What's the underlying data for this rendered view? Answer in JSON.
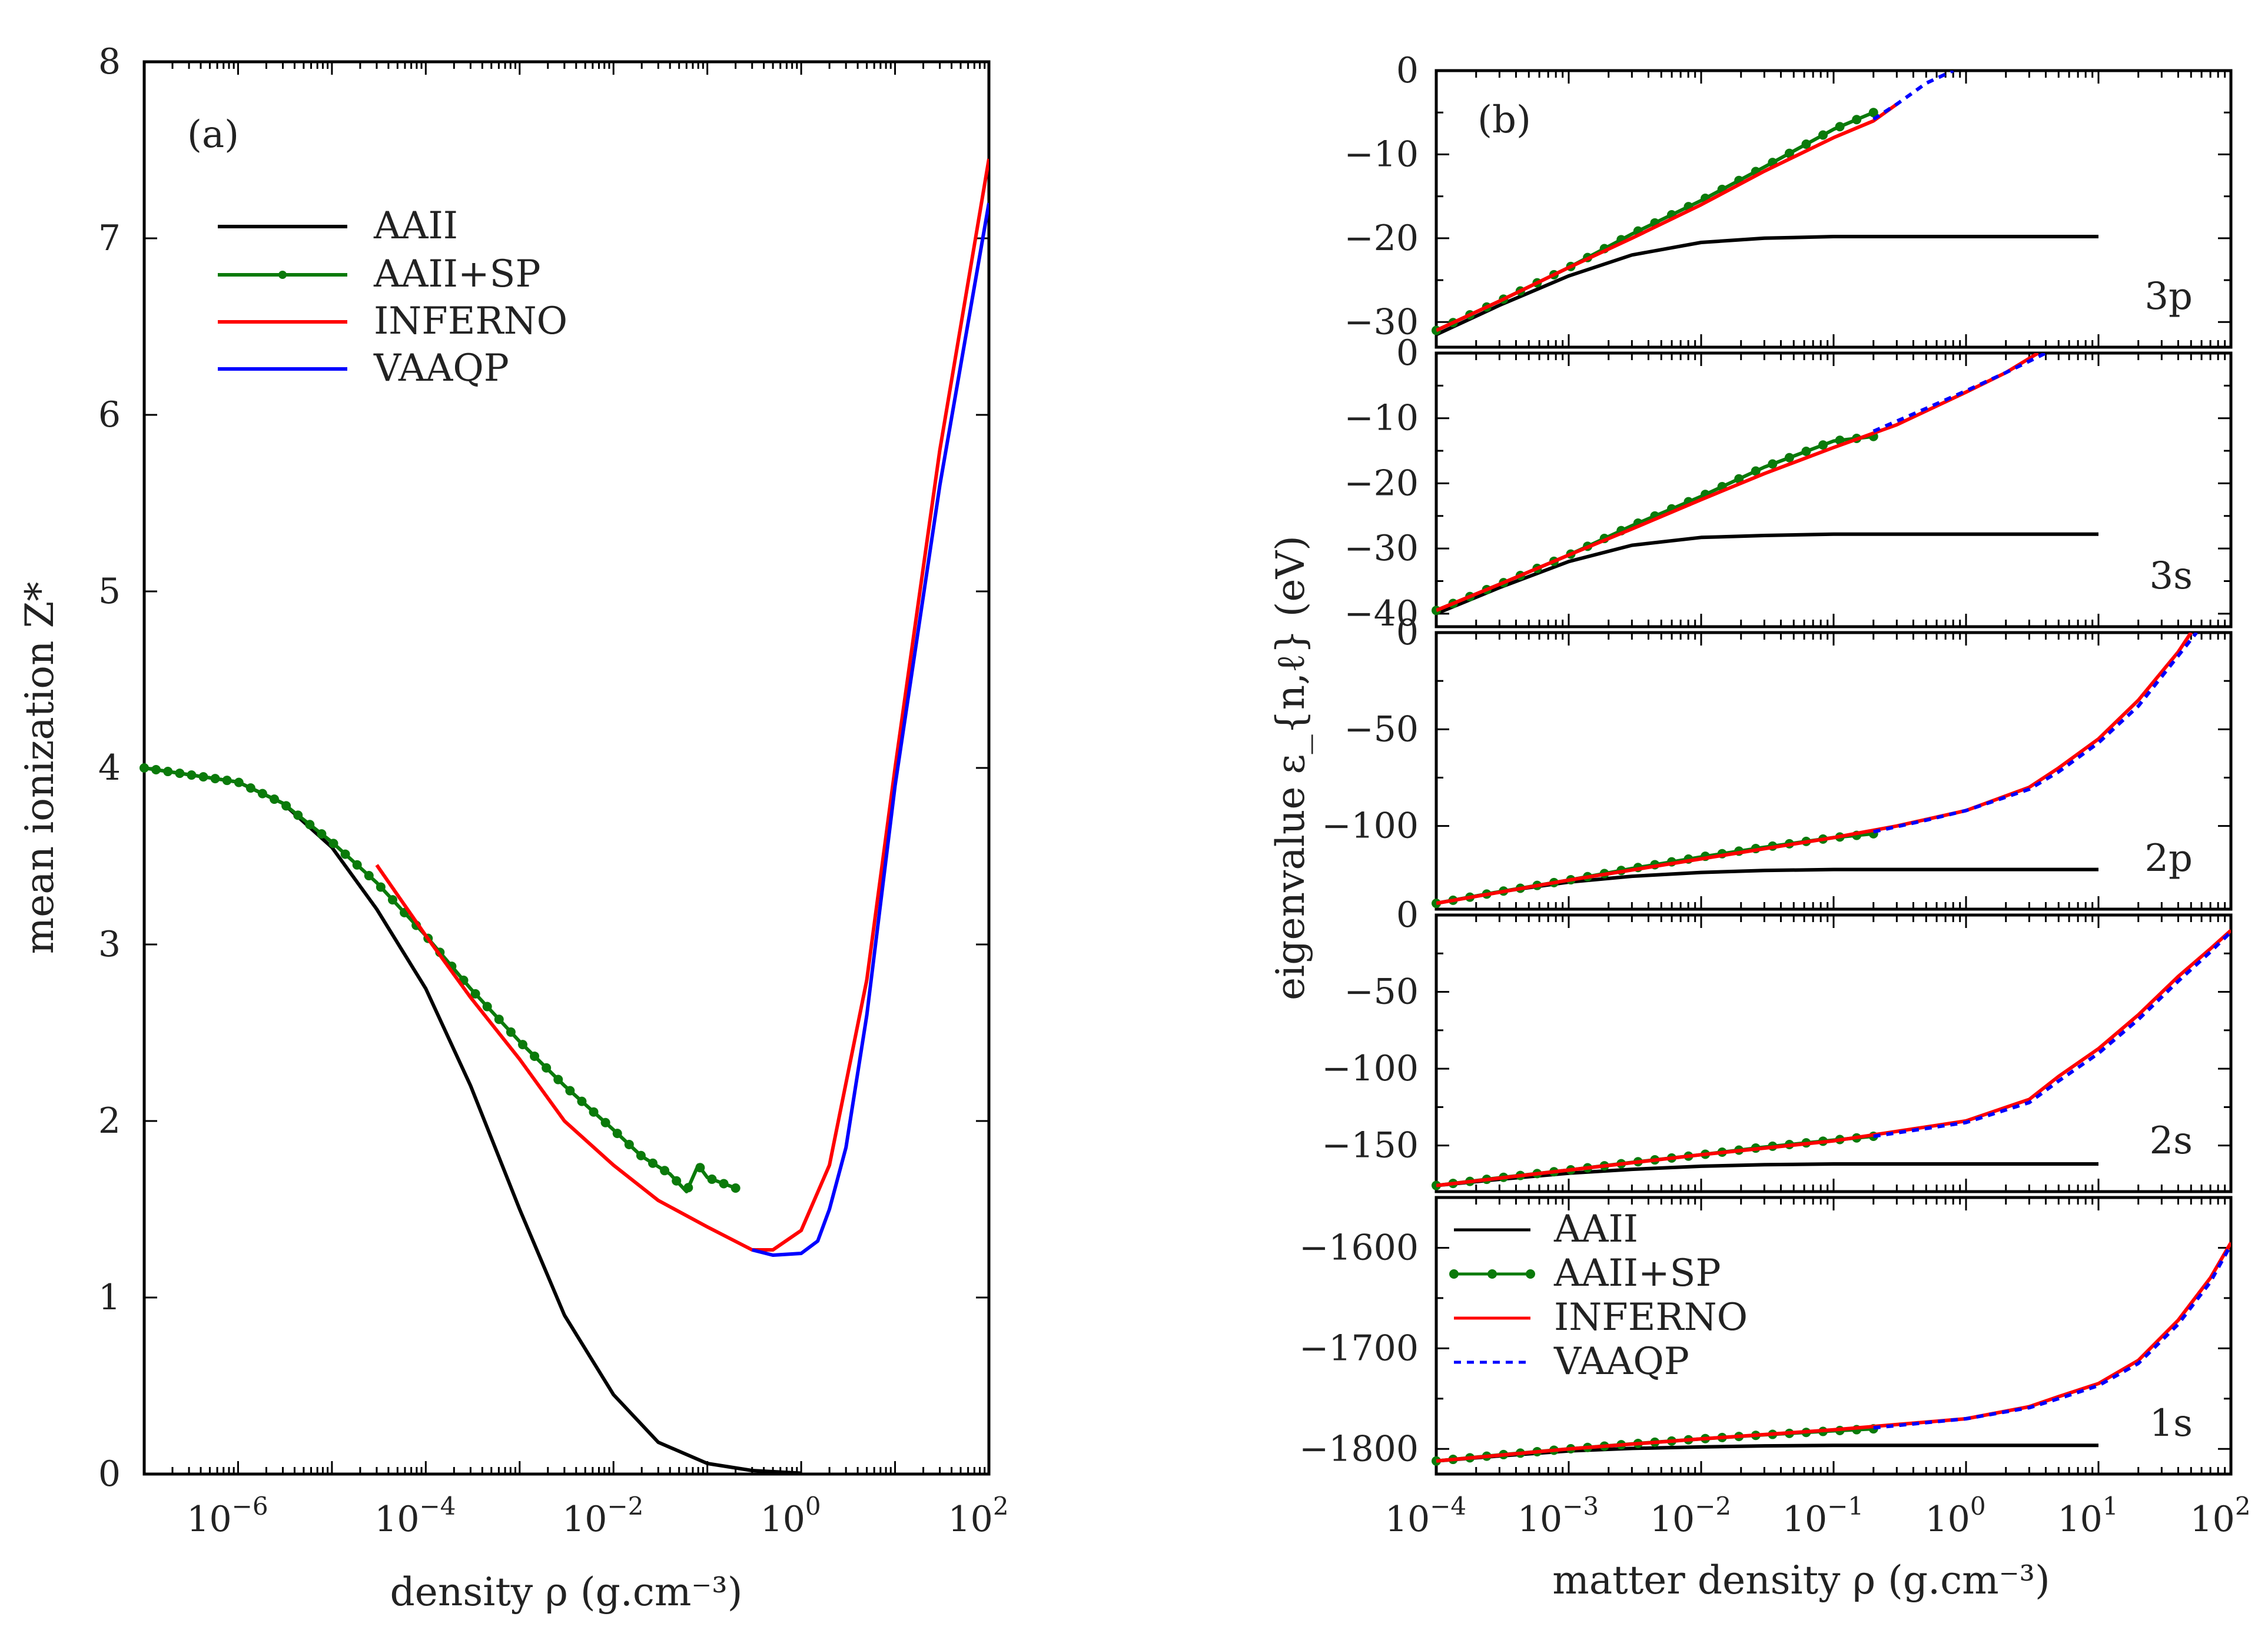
{
  "colors": {
    "AAII": "#000000",
    "AAII+SP": "#0a7a0a",
    "INFERNO": "#ff0000",
    "VAAQP": "#0000ff"
  },
  "chart_data": [
    {
      "panel": "(a)",
      "type": "line",
      "xscale": "log",
      "xlabel": "density ρ (g.cm⁻³)",
      "ylabel": "mean ionization Z*",
      "xlim": [
        1e-07,
        100
      ],
      "ylim": [
        0,
        8
      ],
      "xticks": [
        {
          "v": 1e-06,
          "base": "10",
          "exp": "−6"
        },
        {
          "v": 0.0001,
          "base": "10",
          "exp": "−4"
        },
        {
          "v": 0.01,
          "base": "10",
          "exp": "−2"
        },
        {
          "v": 1,
          "base": "10",
          "exp": "0"
        },
        {
          "v": 100,
          "base": "10",
          "exp": "2"
        }
      ],
      "yticks": [
        0,
        1,
        2,
        3,
        4,
        5,
        6,
        7,
        8
      ],
      "legend": [
        "AAII",
        "AAII+SP",
        "INFERNO",
        "VAAQP"
      ],
      "series": [
        {
          "name": "AAII",
          "x": [
            1e-07,
            1e-06,
            3e-06,
            1e-05,
            3e-05,
            0.0001,
            0.0003,
            0.001,
            0.003,
            0.01,
            0.03,
            0.1,
            0.3,
            1
          ],
          "y": [
            4.0,
            3.92,
            3.8,
            3.55,
            3.2,
            2.75,
            2.2,
            1.5,
            0.9,
            0.45,
            0.18,
            0.06,
            0.02,
            0.005
          ]
        },
        {
          "name": "AAII+SP",
          "markers": true,
          "x": [
            1e-07,
            1e-06,
            3e-06,
            1e-05,
            3e-05,
            0.0001,
            0.0003,
            0.001,
            0.003,
            0.01,
            0.02,
            0.04,
            0.06,
            0.08,
            0.1,
            0.2
          ],
          "y": [
            4.0,
            3.92,
            3.8,
            3.58,
            3.35,
            3.05,
            2.75,
            2.45,
            2.2,
            1.95,
            1.8,
            1.7,
            1.6,
            1.75,
            1.68,
            1.62
          ]
        },
        {
          "name": "INFERNO",
          "x": [
            3e-05,
            0.0001,
            0.0003,
            0.001,
            0.003,
            0.01,
            0.03,
            0.1,
            0.3,
            0.5,
            1,
            2,
            5,
            10,
            30,
            100
          ],
          "y": [
            3.45,
            3.05,
            2.7,
            2.35,
            2.0,
            1.75,
            1.55,
            1.4,
            1.27,
            1.27,
            1.38,
            1.75,
            2.8,
            4.0,
            5.8,
            7.45
          ]
        },
        {
          "name": "VAAQP",
          "x": [
            0.3,
            0.5,
            1,
            1.5,
            2,
            3,
            5,
            10,
            30,
            100
          ],
          "y": [
            1.27,
            1.24,
            1.25,
            1.32,
            1.5,
            1.85,
            2.6,
            3.9,
            5.6,
            7.2
          ]
        }
      ]
    },
    {
      "panel": "(b)",
      "type": "line",
      "xscale": "log",
      "xlabel": "matter density ρ (g.cm⁻³)",
      "ylabel": "eigenvalue ε_{n,ℓ} (eV)",
      "xlim": [
        0.0001,
        100
      ],
      "xticks": [
        {
          "v": 0.0001,
          "base": "10",
          "exp": "−4"
        },
        {
          "v": 0.001,
          "base": "10",
          "exp": "−3"
        },
        {
          "v": 0.01,
          "base": "10",
          "exp": "−2"
        },
        {
          "v": 0.1,
          "base": "10",
          "exp": "−1"
        },
        {
          "v": 1,
          "base": "10",
          "exp": "0"
        },
        {
          "v": 10,
          "base": "10",
          "exp": "1"
        },
        {
          "v": 100,
          "base": "10",
          "exp": "2"
        }
      ],
      "legend": [
        "AAII",
        "AAII+SP",
        "INFERNO",
        "VAAQP"
      ],
      "subpanels": [
        {
          "label": "3p",
          "ylim": [
            -33,
            0
          ],
          "yticks": [
            0,
            -10,
            -20,
            -30
          ],
          "series": [
            {
              "name": "AAII",
              "x": [
                0.0001,
                0.0003,
                0.001,
                0.003,
                0.01,
                0.03,
                0.1,
                1,
                10
              ],
              "y": [
                -31.5,
                -28,
                -24.5,
                -22,
                -20.5,
                -20,
                -19.8,
                -19.8,
                -19.8
              ]
            },
            {
              "name": "AAII+SP",
              "markers": true,
              "x": [
                0.0001,
                0.0003,
                0.001,
                0.003,
                0.01,
                0.03,
                0.1,
                0.2
              ],
              "y": [
                -31,
                -27.5,
                -23.5,
                -19.5,
                -15.5,
                -11.5,
                -7,
                -5
              ]
            },
            {
              "name": "INFERNO",
              "x": [
                0.0001,
                0.0003,
                0.001,
                0.003,
                0.01,
                0.03,
                0.1,
                0.2,
                0.3
              ],
              "y": [
                -31,
                -27.5,
                -23.5,
                -20,
                -16,
                -12,
                -8,
                -6,
                -4
              ]
            },
            {
              "name": "VAAQP",
              "dashed": true,
              "x": [
                0.2,
                0.3,
                0.5,
                0.8
              ],
              "y": [
                -5.8,
                -4,
                -1.5,
                0
              ]
            }
          ]
        },
        {
          "label": "3s",
          "ylim": [
            -42,
            0
          ],
          "yticks": [
            0,
            -10,
            -20,
            -30,
            -40
          ],
          "series": [
            {
              "name": "AAII",
              "x": [
                0.0001,
                0.0003,
                0.001,
                0.003,
                0.01,
                0.03,
                0.1,
                1,
                10
              ],
              "y": [
                -40,
                -36,
                -32,
                -29.5,
                -28.3,
                -28,
                -27.8,
                -27.8,
                -27.8
              ]
            },
            {
              "name": "AAII+SP",
              "markers": true,
              "x": [
                0.0001,
                0.0003,
                0.001,
                0.003,
                0.01,
                0.03,
                0.1,
                0.2
              ],
              "y": [
                -39.5,
                -35.5,
                -31,
                -26.5,
                -22,
                -17.5,
                -13.5,
                -12.8
              ]
            },
            {
              "name": "INFERNO",
              "x": [
                0.0001,
                0.0003,
                0.001,
                0.003,
                0.01,
                0.03,
                0.1,
                0.3,
                1,
                2,
                3.5
              ],
              "y": [
                -39.5,
                -35.5,
                -31,
                -27,
                -22.5,
                -18.5,
                -14.5,
                -11,
                -6,
                -3,
                0
              ]
            },
            {
              "name": "VAAQP",
              "dashed": true,
              "x": [
                0.2,
                0.5,
                1,
                2,
                4
              ],
              "y": [
                -12,
                -8.5,
                -5.8,
                -3,
                0
              ]
            }
          ]
        },
        {
          "label": "2p",
          "ylim": [
            -143,
            0
          ],
          "yticks": [
            0,
            -50,
            -100
          ],
          "series": [
            {
              "name": "AAII",
              "x": [
                0.0001,
                0.0003,
                0.001,
                0.003,
                0.01,
                0.03,
                0.1,
                1,
                10
              ],
              "y": [
                -140,
                -134,
                -129,
                -126,
                -124,
                -123,
                -122.5,
                -122.5,
                -122.5
              ]
            },
            {
              "name": "AAII+SP",
              "markers": true,
              "x": [
                0.0001,
                0.0003,
                0.001,
                0.003,
                0.01,
                0.03,
                0.1,
                0.2
              ],
              "y": [
                -140,
                -134,
                -128,
                -122,
                -116,
                -111,
                -106,
                -104
              ]
            },
            {
              "name": "INFERNO",
              "x": [
                0.0001,
                0.001,
                0.01,
                0.1,
                0.3,
                1,
                3,
                5,
                10,
                20,
                40,
                50
              ],
              "y": [
                -140,
                -128,
                -117,
                -106,
                -100,
                -92,
                -80,
                -70,
                -55,
                -35,
                -10,
                0
              ]
            },
            {
              "name": "VAAQP",
              "dashed": true,
              "x": [
                0.2,
                0.5,
                1,
                3,
                5,
                10,
                20,
                40,
                55
              ],
              "y": [
                -103,
                -97,
                -92,
                -81,
                -72,
                -57,
                -38,
                -12,
                0
              ]
            }
          ]
        },
        {
          "label": "2s",
          "ylim": [
            -180,
            0
          ],
          "yticks": [
            0,
            -50,
            -100,
            -150
          ],
          "series": [
            {
              "name": "AAII",
              "x": [
                0.0001,
                0.0003,
                0.001,
                0.003,
                0.01,
                0.03,
                0.1,
                1,
                10
              ],
              "y": [
                -176,
                -172,
                -168,
                -165.5,
                -163.5,
                -162.5,
                -162,
                -162,
                -162
              ]
            },
            {
              "name": "AAII+SP",
              "markers": true,
              "x": [
                0.0001,
                0.0003,
                0.001,
                0.003,
                0.01,
                0.03,
                0.1,
                0.2
              ],
              "y": [
                -176,
                -171,
                -166,
                -161,
                -156,
                -151,
                -146.5,
                -144
              ]
            },
            {
              "name": "INFERNO",
              "x": [
                0.0001,
                0.001,
                0.01,
                0.1,
                1,
                3,
                5,
                10,
                20,
                40,
                70,
                100
              ],
              "y": [
                -176,
                -166,
                -156,
                -147,
                -134,
                -120,
                -105,
                -87,
                -65,
                -40,
                -22,
                -10
              ]
            },
            {
              "name": "VAAQP",
              "dashed": true,
              "x": [
                0.2,
                1,
                3,
                5,
                10,
                20,
                40,
                70,
                100
              ],
              "y": [
                -144,
                -135,
                -122,
                -108,
                -90,
                -68,
                -43,
                -24,
                -11
              ]
            }
          ]
        },
        {
          "label": "1s",
          "ylim": [
            -1825,
            -1550
          ],
          "yticks": [
            -1600,
            -1700,
            -1800
          ],
          "series": [
            {
              "name": "AAII",
              "x": [
                0.0001,
                0.0003,
                0.001,
                0.003,
                0.01,
                0.03,
                0.1,
                1,
                10
              ],
              "y": [
                -1812,
                -1807,
                -1802,
                -1799.5,
                -1798,
                -1797,
                -1796.5,
                -1796.5,
                -1796.5
              ]
            },
            {
              "name": "AAII+SP",
              "markers": true,
              "x": [
                0.0001,
                0.0003,
                0.001,
                0.003,
                0.01,
                0.03,
                0.1,
                0.2
              ],
              "y": [
                -1812,
                -1806,
                -1800,
                -1795,
                -1790,
                -1786,
                -1782,
                -1780
              ]
            },
            {
              "name": "INFERNO",
              "x": [
                0.0001,
                0.001,
                0.01,
                0.1,
                1,
                3,
                5,
                10,
                20,
                40,
                70,
                100
              ],
              "y": [
                -1812,
                -1800,
                -1790,
                -1781,
                -1770,
                -1758,
                -1748,
                -1735,
                -1712,
                -1672,
                -1630,
                -1595
              ]
            },
            {
              "name": "VAAQP",
              "dashed": true,
              "x": [
                0.2,
                1,
                3,
                5,
                10,
                20,
                40,
                70,
                100
              ],
              "y": [
                -1779,
                -1770,
                -1759,
                -1750,
                -1737,
                -1715,
                -1676,
                -1634,
                -1597
              ]
            }
          ]
        }
      ]
    }
  ]
}
